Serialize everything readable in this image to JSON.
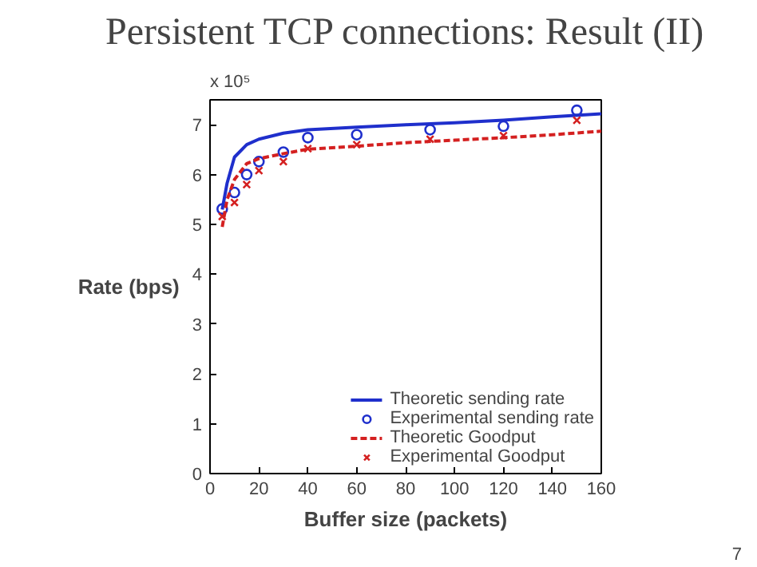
{
  "chart_data": {
    "type": "line",
    "title": "Persistent TCP connections: Result (II)",
    "xlabel": "Buffer size (packets)",
    "ylabel": "Rate (bps)",
    "xlim": [
      0,
      160
    ],
    "xticks": [
      0,
      20,
      40,
      60,
      80,
      100,
      120,
      140,
      160
    ],
    "ylim": [
      0,
      7.5
    ],
    "yticks": [
      0,
      1,
      2,
      3,
      4,
      5,
      6,
      7
    ],
    "annotations": [
      "x 10⁵",
      "7"
    ],
    "legend": "bottom right",
    "grid": false,
    "series": [
      {
        "name": "Theoretic sending rate",
        "line_style": "solid",
        "color": "#1f2fcc",
        "x": [
          5,
          7,
          10,
          15,
          20,
          30,
          40,
          60,
          80,
          100,
          120,
          140,
          160
        ],
        "values": [
          5.3,
          5.83,
          6.35,
          6.6,
          6.71,
          6.83,
          6.9,
          6.95,
          7.0,
          7.04,
          7.09,
          7.16,
          7.22
        ]
      },
      {
        "name": "Experimental sending rate",
        "type": "scatter",
        "marker": "circle",
        "color": "#1f2fcc",
        "x": [
          5,
          10,
          15,
          20,
          30,
          40,
          60,
          90,
          120,
          150
        ],
        "values": [
          5.31,
          5.64,
          6.0,
          6.26,
          6.45,
          6.74,
          6.8,
          6.9,
          6.97,
          7.29
        ]
      },
      {
        "name": "Theoretic Goodput",
        "line_style": "dashed",
        "color": "#d42020",
        "x": [
          5,
          7,
          10,
          15,
          20,
          30,
          40,
          60,
          80,
          100,
          120,
          140,
          160
        ],
        "values": [
          4.95,
          5.5,
          5.9,
          6.22,
          6.32,
          6.42,
          6.51,
          6.57,
          6.64,
          6.69,
          6.74,
          6.8,
          6.87
        ]
      },
      {
        "name": "Experimental Goodput",
        "type": "scatter",
        "marker": "cross",
        "color": "#d42020",
        "x": [
          5,
          10,
          15,
          20,
          30,
          40,
          60,
          90,
          120,
          150
        ],
        "values": [
          5.16,
          5.44,
          5.8,
          6.08,
          6.26,
          6.52,
          6.6,
          6.71,
          6.78,
          7.09
        ]
      }
    ]
  }
}
